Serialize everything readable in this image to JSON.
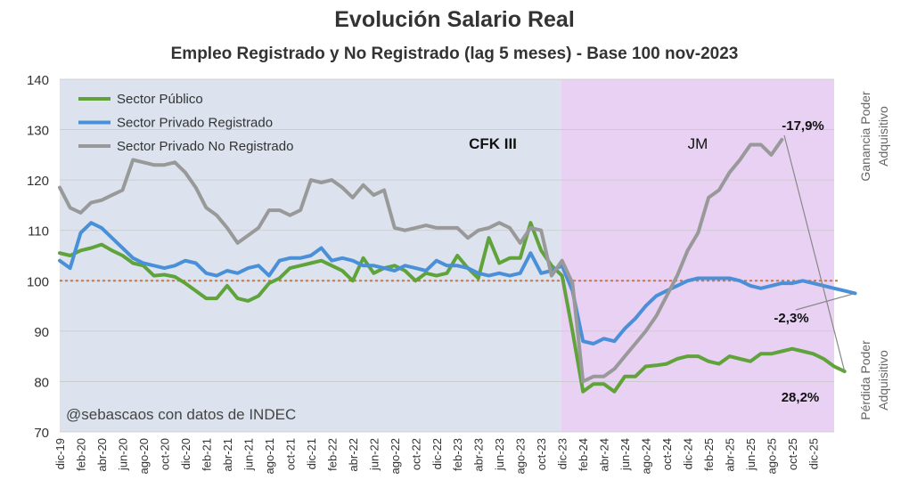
{
  "chart_data": {
    "type": "line",
    "title": "Evolución Salario Real",
    "subtitle": "Empleo Registrado y No Registrado (lag 5 meses) - Base 100 nov-2023",
    "ylim": [
      70,
      140
    ],
    "yticks": [
      70,
      80,
      90,
      100,
      110,
      120,
      130,
      140
    ],
    "x_start": "dic-19",
    "x_tick_labels": [
      "dic-19",
      "feb-20",
      "abr-20",
      "jun-20",
      "ago-20",
      "oct-20",
      "dic-20",
      "feb-21",
      "abr-21",
      "jun-21",
      "ago-21",
      "oct-21",
      "dic-21",
      "feb-22",
      "abr-22",
      "jun-22",
      "ago-22",
      "oct-22",
      "dic-22",
      "feb-23",
      "abr-23",
      "jun-23",
      "ago-23",
      "oct-23",
      "dic-23",
      "feb-24",
      "abr-24",
      "jun-24",
      "ago-24",
      "oct-24",
      "dic-24",
      "feb-25",
      "abr-25",
      "jun-25",
      "ago-25",
      "oct-25",
      "dic-25"
    ],
    "grid": "horizontal",
    "legend_position": "top-left",
    "series": [
      {
        "name": "Sector Público",
        "color": "#5fa33a",
        "values": [
          105.5,
          105,
          106,
          106.5,
          107.2,
          106,
          105,
          103.5,
          103,
          101,
          101.2,
          100.8,
          99.5,
          98,
          96.5,
          96.5,
          99,
          96.5,
          96,
          97,
          99.5,
          100.5,
          102.5,
          103,
          103.5,
          104,
          103,
          102,
          100,
          104.5,
          101.5,
          102.5,
          103,
          102,
          100,
          101.5,
          101,
          101.5,
          105,
          102.5,
          100.5,
          108.5,
          103.5,
          104.5,
          104.5,
          111.5,
          106,
          103,
          101,
          90,
          78,
          79.5,
          79.5,
          78,
          81,
          81,
          83,
          83.2,
          83.5,
          84.5,
          85,
          85,
          84,
          83.5,
          85,
          84.5,
          84,
          85.5,
          85.5,
          86,
          86.5,
          86,
          85.5,
          84.5,
          83,
          82
        ]
      },
      {
        "name": "Sector Privado Registrado",
        "color": "#4a90d9",
        "values": [
          104,
          102.5,
          109.5,
          111.5,
          110.5,
          108.5,
          106.5,
          104.5,
          103.5,
          103,
          102.5,
          103,
          104,
          103.5,
          101.5,
          101,
          102,
          101.5,
          102.5,
          103,
          101,
          104,
          104.5,
          104.5,
          105,
          106.5,
          104,
          104.5,
          104,
          103,
          103,
          102.5,
          102,
          103,
          102.5,
          102,
          104,
          103,
          103,
          102.5,
          101.5,
          101,
          101.5,
          101,
          101.5,
          105.5,
          101.5,
          102,
          103,
          98,
          88,
          87.5,
          88.5,
          88,
          90.5,
          92.5,
          95,
          97,
          98,
          99,
          100,
          100.5,
          100.5,
          100.5,
          100.5,
          100,
          99,
          98.5,
          99,
          99.5,
          99.5,
          100,
          99.5,
          99,
          98.5,
          98,
          97.5
        ]
      },
      {
        "name": "Sector Privado No Registrado",
        "color": "#999999",
        "values": [
          118.5,
          114.5,
          113.5,
          115.5,
          116,
          117,
          118,
          124,
          123.5,
          123,
          123,
          123.5,
          121.5,
          118.5,
          114.5,
          113,
          110.5,
          107.5,
          109,
          110.5,
          114,
          114,
          113,
          114,
          120,
          119.5,
          120,
          118.5,
          116.5,
          119,
          117,
          118,
          110.5,
          110,
          110.5,
          111,
          110.5,
          110.5,
          110.5,
          108.5,
          110,
          110.5,
          111.5,
          110.5,
          107.5,
          110.5,
          110,
          101,
          104,
          99.5,
          80,
          81,
          81,
          82.5,
          85,
          87.5,
          90,
          93,
          97,
          101,
          106,
          109.5,
          116.5,
          118,
          121.5,
          124,
          127,
          127,
          125,
          128
        ]
      }
    ],
    "periods": [
      {
        "label": "CFK III",
        "start_index": 0,
        "end_index": 48,
        "color": "#dce3ee"
      },
      {
        "label": "JM",
        "start_index": 48,
        "end_index": 74,
        "color": "#e8d1f3"
      }
    ],
    "reference_line": {
      "value": 100,
      "color": "#e0712c"
    },
    "annotations": [
      {
        "text": "28,2%",
        "series": 2
      },
      {
        "text": "-2,3%",
        "series": 1
      },
      {
        "text": "-17,9%",
        "series": 0
      }
    ],
    "right_axis_labels": {
      "top": [
        "Ganancia Poder",
        "Adquisitivo"
      ],
      "bottom": [
        "Pérdida Poder",
        "Adquisitivo"
      ]
    },
    "watermark": "@sebascaos con datos de INDEC"
  }
}
